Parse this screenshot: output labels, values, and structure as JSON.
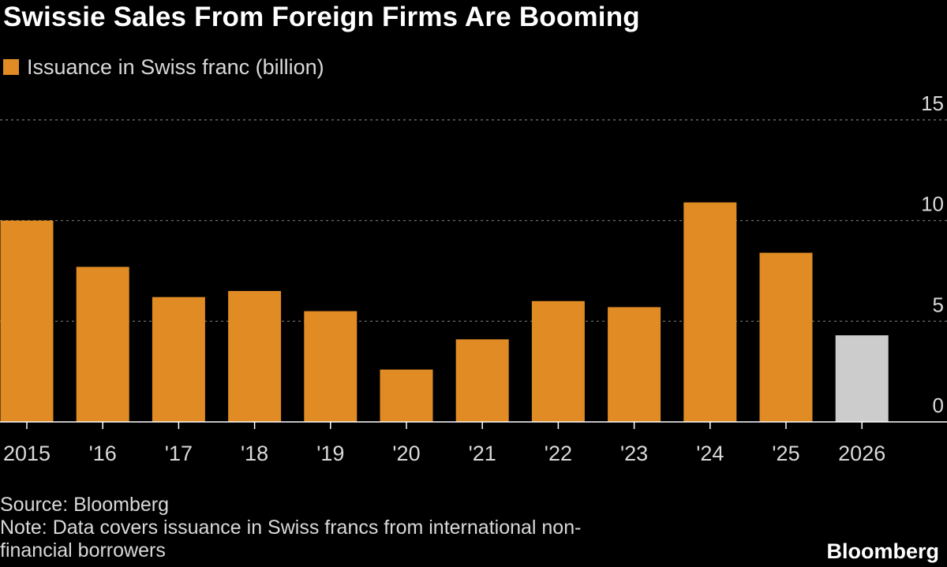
{
  "chart_data": {
    "type": "bar",
    "title": "Swissie Sales From Foreign Firms Are Booming",
    "legend": [
      {
        "label": "Issuance in Swiss franc (billion)",
        "color": "#e08b24"
      }
    ],
    "legend_placement": "top-left",
    "categories": [
      "2015",
      "'16",
      "'17",
      "'18",
      "'19",
      "'20",
      "'21",
      "'22",
      "'23",
      "'24",
      "'25",
      "2026"
    ],
    "series": [
      {
        "name": "Issuance in Swiss franc (billion)",
        "values": [
          10.0,
          7.7,
          6.2,
          6.5,
          5.5,
          2.6,
          4.1,
          6.0,
          5.7,
          10.9,
          8.4,
          4.3
        ]
      }
    ],
    "bar_colors": [
      "#e08b24",
      "#e08b24",
      "#e08b24",
      "#e08b24",
      "#e08b24",
      "#e08b24",
      "#e08b24",
      "#e08b24",
      "#e08b24",
      "#e08b24",
      "#e08b24",
      "#cccccc"
    ],
    "ylim": [
      0,
      15
    ],
    "yticks": [
      0,
      5,
      10,
      15
    ],
    "y_axis_side": "right",
    "grid": true,
    "xlabel": "",
    "ylabel": ""
  },
  "footer": {
    "source": "Source: Bloomberg",
    "note_line1": "Note: Data covers issuance in Swiss francs from international non-",
    "note_line2": "financial borrowers"
  },
  "brand": "Bloomberg",
  "colors": {
    "background": "#000000",
    "bar": "#e08b24",
    "bar_projection": "#cccccc",
    "grid": "#7a7a7a",
    "text": "#ffffff",
    "muted_text": "#d9d9d9"
  }
}
